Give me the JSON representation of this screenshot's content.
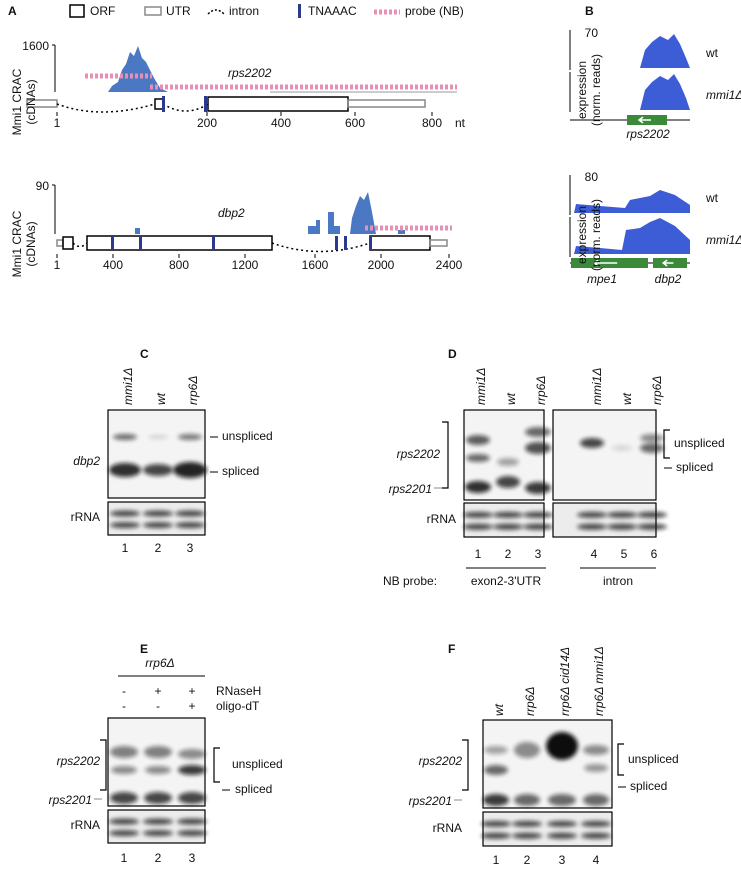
{
  "legend": {
    "orf": "ORF",
    "utr": "UTR",
    "intron": "intron",
    "motif": "TNAAAC",
    "probe": "probe (NB)"
  },
  "panel_a": {
    "label": "A",
    "y_label": [
      "Mmi1 CRAC",
      "(cDNAs)"
    ],
    "unit": "nt",
    "genes": [
      {
        "name": "rps2202",
        "y_max": 1600,
        "x_ticks": [
          1,
          200,
          400,
          600,
          800
        ]
      },
      {
        "name": "dbp2",
        "y_max": 90,
        "x_ticks": [
          1,
          400,
          800,
          1200,
          1600,
          2000,
          2400
        ]
      }
    ]
  },
  "panel_b": {
    "label": "B",
    "y_label": [
      "expression",
      "(norm. reads)"
    ],
    "loci": [
      {
        "y_max": 70,
        "tracks": [
          "wt",
          "mmi1Δ"
        ],
        "genes": [
          "rps2202"
        ]
      },
      {
        "y_max": 80,
        "tracks": [
          "wt",
          "mmi1Δ"
        ],
        "genes": [
          "mpe1",
          "dbp2"
        ]
      }
    ]
  },
  "panel_c": {
    "label": "C",
    "lanes": [
      "mmi1Δ",
      "wt",
      "rrp6Δ"
    ],
    "target": "dbp2",
    "bands": [
      "unspliced",
      "spliced"
    ],
    "loading": "rRNA",
    "lane_numbers": [
      1,
      2,
      3
    ]
  },
  "panel_d": {
    "label": "D",
    "lanes": [
      "mmi1Δ",
      "wt",
      "rrp6Δ",
      "mmi1Δ",
      "wt",
      "rrp6Δ"
    ],
    "target": "rps2202",
    "paralog": "rps2201",
    "bands": [
      "unspliced",
      "spliced"
    ],
    "loading": "rRNA",
    "lane_numbers": [
      1,
      2,
      3,
      4,
      5,
      6
    ],
    "probe_label": "NB probe:",
    "probes": [
      "exon2-3'UTR",
      "intron"
    ]
  },
  "panel_e": {
    "label": "E",
    "group": "rrp6Δ",
    "treatments": [
      {
        "name": "RNaseH",
        "signs": [
          "-",
          "+",
          "+"
        ]
      },
      {
        "name": "oligo-dT",
        "signs": [
          "-",
          "-",
          "+"
        ]
      }
    ],
    "target": "rps2202",
    "paralog": "rps2201",
    "bands": [
      "unspliced",
      "spliced"
    ],
    "loading": "rRNA",
    "lane_numbers": [
      1,
      2,
      3
    ]
  },
  "panel_f": {
    "label": "F",
    "lanes": [
      "wt",
      "rrp6Δ",
      "rrp6Δ cid14Δ",
      "rrp6Δ mmi1Δ"
    ],
    "target": "rps2202",
    "paralog": "rps2201",
    "bands": [
      "unspliced",
      "spliced"
    ],
    "loading": "rRNA",
    "lane_numbers": [
      1,
      2,
      3,
      4
    ]
  }
}
